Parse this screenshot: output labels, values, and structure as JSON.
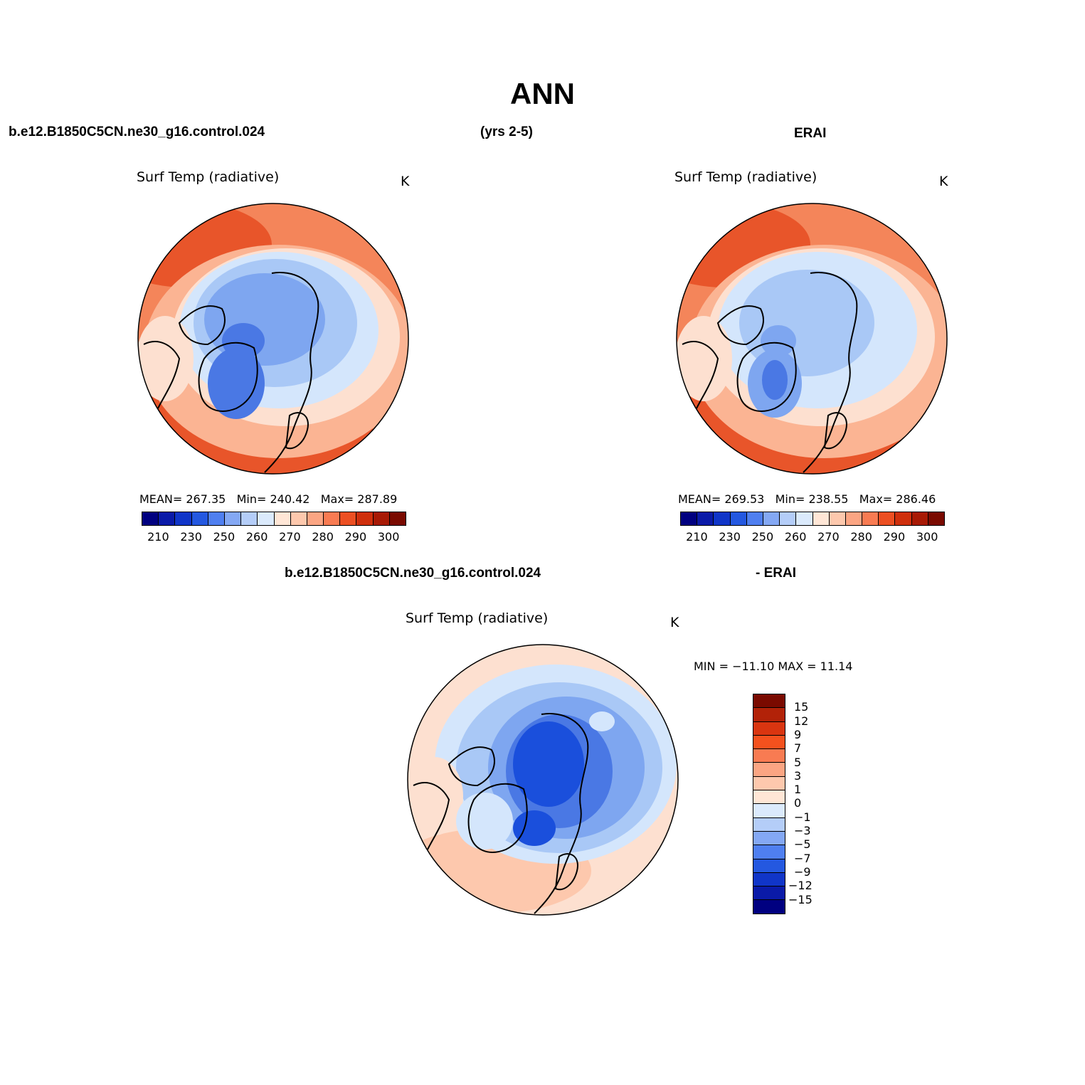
{
  "figure": {
    "title": "ANN",
    "case_name": "b.e12.B1850C5CN.ne30_g16.control.024",
    "years": "(yrs 2-5)",
    "obs_name": "ERAI",
    "diff_case_name": "b.e12.B1850C5CN.ne30_g16.control.024",
    "diff_obs_name": "- ERAI"
  },
  "panels": {
    "model": {
      "title": "Surf Temp (radiative)",
      "units": "K",
      "stats": {
        "mean_label": "MEAN=",
        "mean": "267.35",
        "min_label": "Min=",
        "min": "240.42",
        "max_label": "Max=",
        "max": "287.89"
      }
    },
    "obs": {
      "title": "Surf Temp (radiative)",
      "units": "K",
      "stats": {
        "mean_label": "MEAN=",
        "mean": "269.53",
        "min_label": "Min=",
        "min": "238.55",
        "max_label": "Max=",
        "max": "286.46"
      }
    },
    "diff": {
      "title": "Surf Temp (radiative)",
      "units": "K",
      "minmax": "MIN = −11.10 MAX =  11.14"
    }
  },
  "colorbar_abs": {
    "tick_labels": [
      "210",
      "230",
      "250",
      "260",
      "270",
      "280",
      "290",
      "300"
    ],
    "colors": [
      "#000080",
      "#0a1aa8",
      "#1035c8",
      "#2458e0",
      "#4f7ff0",
      "#84a8f4",
      "#b4cdf8",
      "#dbeafc",
      "#ffe6d6",
      "#fdc8ad",
      "#fba583",
      "#f87b52",
      "#ec4f22",
      "#cf2f0c",
      "#a81a05",
      "#7a0a00"
    ]
  },
  "colorbar_diff": {
    "tick_labels": [
      "15",
      "12",
      "9",
      "7",
      "5",
      "3",
      "1",
      "0",
      "−1",
      "−3",
      "−5",
      "−7",
      "−9",
      "−12",
      "−15"
    ],
    "colors": [
      "#7a0a00",
      "#b22208",
      "#d93510",
      "#f4511e",
      "#f87b52",
      "#fba583",
      "#fdc8ad",
      "#ffe6d6",
      "#dbeafc",
      "#b4cdf8",
      "#84a8f4",
      "#4f7ff0",
      "#2458e0",
      "#1035c8",
      "#0a1aa8",
      "#000080"
    ]
  },
  "map_colors": {
    "warm_dark": "#e8552a",
    "warm_mid": "#f4855a",
    "warm_light": "#fbb493",
    "warm_pale": "#fde0d0",
    "cold_pale": "#d4e6fc",
    "cold_light": "#a9c8f6",
    "cold_mid": "#7ea6f0",
    "cold_dark": "#4a78e4",
    "cold_deep": "#1a4fdc"
  }
}
